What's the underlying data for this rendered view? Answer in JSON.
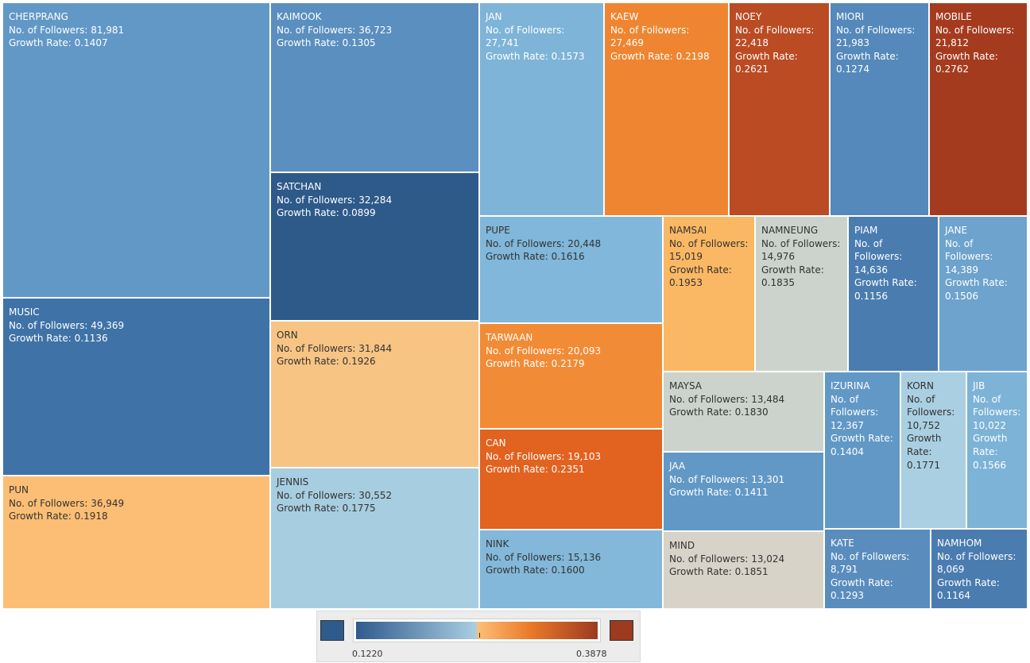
{
  "chart_data": {
    "type": "treemap",
    "size_measure": "No. of Followers",
    "color_measure": "Growth Rate",
    "items": [
      {
        "name": "CHERPRANG",
        "followers": "81,981",
        "growth": "0.1407",
        "color": "#6298c6"
      },
      {
        "name": "MUSIC",
        "followers": "49,369",
        "growth": "0.1136",
        "color": "#3f72a6"
      },
      {
        "name": "PUN",
        "followers": "36,949",
        "growth": "0.1918",
        "color": "#fcbe75"
      },
      {
        "name": "KAIMOOK",
        "followers": "36,723",
        "growth": "0.1305",
        "color": "#5a8fbf"
      },
      {
        "name": "SATCHAN",
        "followers": "32,284",
        "growth": "0.0899",
        "color": "#2e5a8a"
      },
      {
        "name": "ORN",
        "followers": "31,844",
        "growth": "0.1926",
        "color": "#f7c484"
      },
      {
        "name": "JENNIS",
        "followers": "30,552",
        "growth": "0.1775",
        "color": "#a7cde0"
      },
      {
        "name": "JAN",
        "followers": "27,741",
        "growth": "0.1573",
        "color": "#7eb4d8"
      },
      {
        "name": "KAEW",
        "followers": "27,469",
        "growth": "0.2198",
        "color": "#ef8530"
      },
      {
        "name": "NOEY",
        "followers": "22,418",
        "growth": "0.2621",
        "color": "#bb4b23"
      },
      {
        "name": "MIORI",
        "followers": "21,983",
        "growth": "0.1274",
        "color": "#5589bb"
      },
      {
        "name": "MOBILE",
        "followers": "21,812",
        "growth": "0.2762",
        "color": "#a53b1e"
      },
      {
        "name": "PUPE",
        "followers": "20,448",
        "growth": "0.1616",
        "color": "#80b7da"
      },
      {
        "name": "TARWAAN",
        "followers": "20,093",
        "growth": "0.2179",
        "color": "#f28b36"
      },
      {
        "name": "CAN",
        "followers": "19,103",
        "growth": "0.2351",
        "color": "#e2621f"
      },
      {
        "name": "NINK",
        "followers": "15,136",
        "growth": "0.1600",
        "color": "#83b8da"
      },
      {
        "name": "NAMSAI",
        "followers": "15,019",
        "growth": "0.1953",
        "color": "#fbb864"
      },
      {
        "name": "NAMNEUNG",
        "followers": "14,976",
        "growth": "0.1835",
        "color": "#ccd3cd"
      },
      {
        "name": "PIAM",
        "followers": "14,636",
        "growth": "0.1156",
        "color": "#4a7cb0"
      },
      {
        "name": "JANE",
        "followers": "14,389",
        "growth": "0.1506",
        "color": "#6da3cd"
      },
      {
        "name": "MAYSA",
        "followers": "13,484",
        "growth": "0.1830",
        "color": "#ccd3cc"
      },
      {
        "name": "JAA",
        "followers": "13,301",
        "growth": "0.1411",
        "color": "#6298c6"
      },
      {
        "name": "MIND",
        "followers": "13,024",
        "growth": "0.1851",
        "color": "#d8d3c9"
      },
      {
        "name": "IZURINA",
        "followers": "12,367",
        "growth": "0.1404",
        "color": "#6298c6"
      },
      {
        "name": "KORN",
        "followers": "10,752",
        "growth": "0.1771",
        "color": "#aacfe2"
      },
      {
        "name": "JIB",
        "followers": "10,022",
        "growth": "0.1566",
        "color": "#7db3d7"
      },
      {
        "name": "KATE",
        "followers": "8,791",
        "growth": "0.1293",
        "color": "#5a8dbe"
      },
      {
        "name": "NAMHOM",
        "followers": "8,069",
        "growth": "0.1164",
        "color": "#4a7cb0"
      }
    ],
    "color_scale": {
      "min": "0.1220",
      "max": "0.3878",
      "low_color": "#2f5b8c",
      "mid_color": "#a9cde2",
      "mid_high_color": "#fcbf78",
      "high_color": "#9d3a1f"
    }
  },
  "labels": {
    "followers_prefix": "No. of Followers: ",
    "growth_prefix": "Growth Rate: "
  }
}
